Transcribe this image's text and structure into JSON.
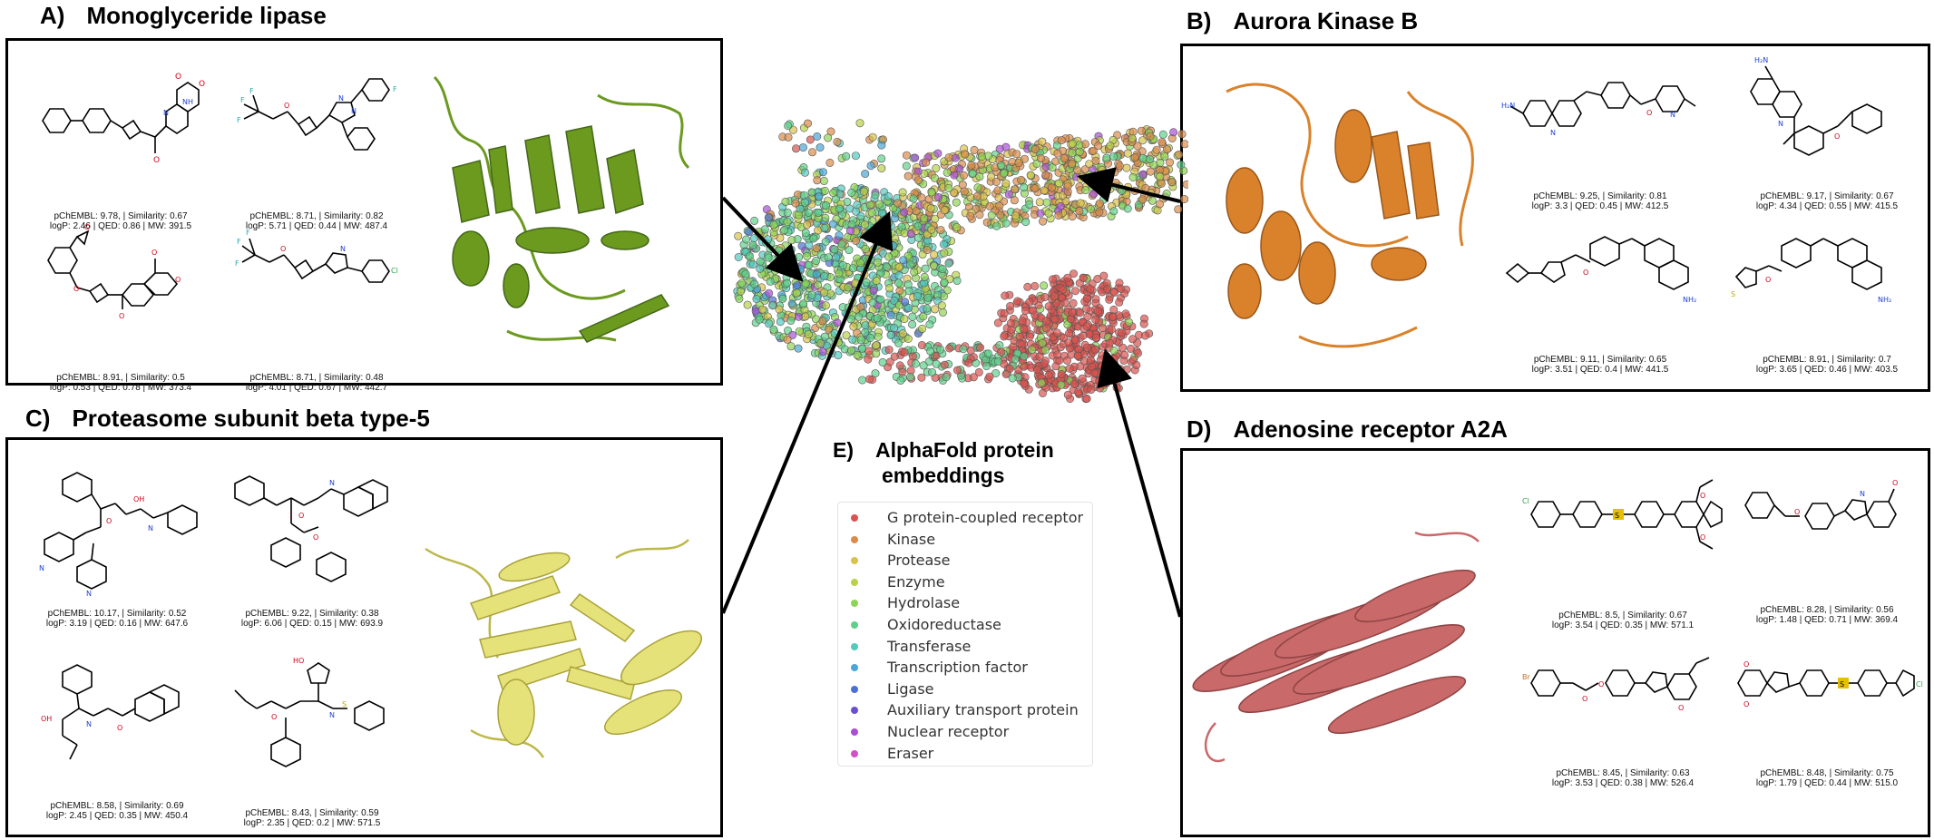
{
  "panels": {
    "a": {
      "label": "A)",
      "title": "Monoglyceride lipase",
      "protein_color": "#6b9a1e",
      "molecules": [
        {
          "line1": "pChEMBL: 9.78, | Similarity: 0.67",
          "line2": "logP: 2.46 | QED: 0.86 | MW: 391.5"
        },
        {
          "line1": "pChEMBL: 8.71, | Similarity: 0.82",
          "line2": "logP: 5.71 | QED: 0.44 | MW: 487.4"
        },
        {
          "line1": "pChEMBL: 8.91, | Similarity: 0.5",
          "line2": "logP: 0.53 | QED: 0.78 | MW: 373.4"
        },
        {
          "line1": "pChEMBL: 8.71, | Similarity: 0.48",
          "line2": "logP: 4.01 | QED: 0.67 | MW: 442.7"
        }
      ]
    },
    "b": {
      "label": "B)",
      "title": "Aurora Kinase B",
      "protein_color": "#d9822b",
      "molecules": [
        {
          "line1": "pChEMBL: 9.25, | Similarity: 0.81",
          "line2": "logP: 3.3 | QED: 0.45 | MW: 412.5"
        },
        {
          "line1": "pChEMBL: 9.17, | Similarity: 0.67",
          "line2": "logP: 4.34 | QED: 0.55 | MW: 415.5"
        },
        {
          "line1": "pChEMBL: 9.11, | Similarity: 0.65",
          "line2": "logP: 3.51 | QED: 0.4 | MW: 441.5"
        },
        {
          "line1": "pChEMBL: 8.91, | Similarity: 0.7",
          "line2": "logP: 3.65 | QED: 0.46 | MW: 403.5"
        }
      ]
    },
    "c": {
      "label": "C)",
      "title": "Proteasome subunit beta type-5",
      "protein_color": "#e6e27a",
      "molecules": [
        {
          "line1": "pChEMBL: 10.17, | Similarity: 0.52",
          "line2": "logP: 3.19 | QED: 0.16 | MW: 647.6"
        },
        {
          "line1": "pChEMBL: 9.22, | Similarity: 0.38",
          "line2": "logP: 6.06 | QED: 0.15 | MW: 693.9"
        },
        {
          "line1": "pChEMBL: 8.58, | Similarity: 0.69",
          "line2": "logP: 2.45 | QED: 0.35 | MW: 450.4"
        },
        {
          "line1": "pChEMBL: 8.43, | Similarity: 0.59",
          "line2": "logP: 2.35 | QED: 0.2 | MW: 571.5"
        }
      ]
    },
    "d": {
      "label": "D)",
      "title": "Adenosine receptor A2A",
      "protein_color": "#c9696a",
      "molecules": [
        {
          "line1": "pChEMBL: 8.5, | Similarity: 0.67",
          "line2": "logP: 3.54 | QED: 0.35 | MW: 571.1"
        },
        {
          "line1": "pChEMBL: 8.28, | Similarity: 0.56",
          "line2": "logP: 1.48 | QED: 0.71 | MW: 369.4"
        },
        {
          "line1": "pChEMBL: 8.45, | Similarity: 0.63",
          "line2": "logP: 3.53 | QED: 0.38 | MW: 526.4"
        },
        {
          "line1": "pChEMBL: 8.48, | Similarity: 0.75",
          "line2": "logP: 1.79 | QED: 0.44 | MW: 515.0"
        }
      ]
    }
  },
  "embedding": {
    "label": "E)",
    "title_line1": "AlphaFold protein",
    "title_line2": "embeddings",
    "legend": [
      {
        "name": "G protein-coupled receptor",
        "color": "#d9534f"
      },
      {
        "name": "Kinase",
        "color": "#d98c4a"
      },
      {
        "name": "Protease",
        "color": "#d8c24a"
      },
      {
        "name": "Enzyme",
        "color": "#b9d24a"
      },
      {
        "name": "Hydrolase",
        "color": "#8ed456"
      },
      {
        "name": "Oxidoreductase",
        "color": "#5fd08a"
      },
      {
        "name": "Transferase",
        "color": "#54c9c0"
      },
      {
        "name": "Transcription factor",
        "color": "#4aa6d6"
      },
      {
        "name": "Ligase",
        "color": "#4a6fd6"
      },
      {
        "name": "Auxiliary transport protein",
        "color": "#6a4fd0"
      },
      {
        "name": "Nuclear receptor",
        "color": "#a94fd6"
      },
      {
        "name": "Eraser",
        "color": "#d24fc6"
      }
    ]
  }
}
